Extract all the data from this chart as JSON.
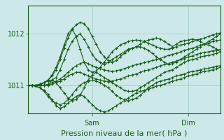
{
  "title": "",
  "xlabel": "Pression niveau de la mer( hPa )",
  "xlabel_fontsize": 8,
  "background_color": "#cce8e8",
  "grid_color": "#a0c8c8",
  "line_color": "#1a5c1a",
  "text_color": "#1a5c1a",
  "yticks": [
    1011,
    1012
  ],
  "ylim": [
    1010.45,
    1012.55
  ],
  "xlim": [
    0,
    48
  ],
  "xtick_positions": [
    16,
    40
  ],
  "xtick_labels": [
    "Sam",
    "Dim"
  ],
  "num_steps": 49,
  "ensemble_lines": [
    [
      1011.0,
      1011.0,
      1011.0,
      1011.0,
      1011.05,
      1011.1,
      1011.2,
      1011.35,
      1011.55,
      1011.78,
      1012.0,
      1012.1,
      1011.95,
      1011.7,
      1011.45,
      1011.3,
      1011.25,
      1011.28,
      1011.35,
      1011.45,
      1011.55,
      1011.65,
      1011.72,
      1011.78,
      1011.82,
      1011.85,
      1011.87,
      1011.88,
      1011.87,
      1011.85,
      1011.82,
      1011.78,
      1011.75,
      1011.72,
      1011.7,
      1011.7,
      1011.72,
      1011.75,
      1011.78,
      1011.8,
      1011.82,
      1011.85,
      1011.88,
      1011.9,
      1011.92,
      1011.95,
      1011.98,
      1012.0,
      1012.02
    ],
    [
      1011.0,
      1011.0,
      1011.0,
      1011.02,
      1011.05,
      1011.1,
      1011.18,
      1011.3,
      1011.5,
      1011.72,
      1011.92,
      1012.08,
      1012.18,
      1012.22,
      1012.2,
      1012.1,
      1011.95,
      1011.8,
      1011.65,
      1011.55,
      1011.48,
      1011.45,
      1011.48,
      1011.55,
      1011.62,
      1011.68,
      1011.72,
      1011.75,
      1011.75,
      1011.72,
      1011.68,
      1011.62,
      1011.55,
      1011.5,
      1011.45,
      1011.4,
      1011.42,
      1011.45,
      1011.5,
      1011.55,
      1011.6,
      1011.65,
      1011.7,
      1011.75,
      1011.8,
      1011.85,
      1011.9,
      1011.95,
      1012.0
    ],
    [
      1011.0,
      1011.0,
      1011.0,
      1011.0,
      1011.0,
      1011.02,
      1011.05,
      1011.08,
      1011.12,
      1011.18,
      1011.25,
      1011.32,
      1011.38,
      1011.42,
      1011.45,
      1011.42,
      1011.38,
      1011.35,
      1011.32,
      1011.3,
      1011.28,
      1011.27,
      1011.28,
      1011.3,
      1011.32,
      1011.35,
      1011.38,
      1011.4,
      1011.42,
      1011.44,
      1011.46,
      1011.48,
      1011.5,
      1011.52,
      1011.55,
      1011.58,
      1011.6,
      1011.62,
      1011.65,
      1011.68,
      1011.7,
      1011.72,
      1011.75,
      1011.78,
      1011.8,
      1011.82,
      1011.85,
      1011.87,
      1011.88
    ],
    [
      1011.0,
      1011.0,
      1011.0,
      1011.0,
      1011.0,
      1011.0,
      1011.02,
      1011.05,
      1011.08,
      1011.12,
      1011.18,
      1011.22,
      1011.25,
      1011.25,
      1011.22,
      1011.18,
      1011.15,
      1011.12,
      1011.1,
      1011.08,
      1011.07,
      1011.08,
      1011.1,
      1011.12,
      1011.15,
      1011.18,
      1011.2,
      1011.22,
      1011.25,
      1011.28,
      1011.3,
      1011.32,
      1011.35,
      1011.38,
      1011.4,
      1011.42,
      1011.45,
      1011.47,
      1011.5,
      1011.52,
      1011.55,
      1011.57,
      1011.6,
      1011.62,
      1011.64,
      1011.65,
      1011.67,
      1011.68,
      1011.7
    ],
    [
      1011.0,
      1011.0,
      1011.0,
      1011.0,
      1011.0,
      1011.0,
      1011.1,
      1011.15,
      1011.3,
      1011.5,
      1011.7,
      1011.85,
      1011.95,
      1012.0,
      1011.9,
      1011.75,
      1011.6,
      1011.5,
      1011.45,
      1011.4,
      1011.45,
      1011.5,
      1011.55,
      1011.6,
      1011.65,
      1011.7,
      1011.72,
      1011.75,
      1011.8,
      1011.85,
      1011.88,
      1011.9,
      1011.92,
      1011.9,
      1011.85,
      1011.8,
      1011.75,
      1011.8,
      1011.85,
      1011.87,
      1011.88,
      1011.9,
      1011.88,
      1011.85,
      1011.8,
      1011.78,
      1011.75,
      1011.7,
      1011.65
    ],
    [
      1011.0,
      1011.0,
      1011.0,
      1011.02,
      1011.05,
      1011.08,
      1011.1,
      1011.05,
      1010.95,
      1010.85,
      1010.75,
      1010.7,
      1010.72,
      1010.8,
      1010.95,
      1011.1,
      1011.2,
      1011.25,
      1011.2,
      1011.15,
      1011.1,
      1011.05,
      1011.0,
      1010.95,
      1010.9,
      1010.88,
      1010.88,
      1010.9,
      1010.95,
      1011.0,
      1011.05,
      1011.1,
      1011.15,
      1011.2,
      1011.25,
      1011.28,
      1011.3,
      1011.35,
      1011.4,
      1011.45,
      1011.48,
      1011.5,
      1011.52,
      1011.55,
      1011.57,
      1011.58,
      1011.6,
      1011.62,
      1011.65
    ],
    [
      1011.0,
      1011.0,
      1010.98,
      1010.95,
      1010.88,
      1010.78,
      1010.7,
      1010.65,
      1010.62,
      1010.65,
      1010.72,
      1010.82,
      1010.92,
      1011.0,
      1011.05,
      1011.08,
      1011.1,
      1011.08,
      1011.05,
      1011.0,
      1010.95,
      1010.88,
      1010.8,
      1010.75,
      1010.72,
      1010.7,
      1010.72,
      1010.75,
      1010.8,
      1010.88,
      1010.95,
      1011.0,
      1011.05,
      1011.08,
      1011.1,
      1011.12,
      1011.15,
      1011.18,
      1011.2,
      1011.22,
      1011.25,
      1011.27,
      1011.28,
      1011.3,
      1011.32,
      1011.33,
      1011.35,
      1011.37,
      1011.38
    ],
    [
      1011.0,
      1011.0,
      1010.98,
      1010.95,
      1010.9,
      1010.82,
      1010.72,
      1010.6,
      1010.55,
      1010.58,
      1010.65,
      1010.72,
      1010.78,
      1010.82,
      1010.78,
      1010.7,
      1010.62,
      1010.55,
      1010.5,
      1010.48,
      1010.5,
      1010.55,
      1010.6,
      1010.65,
      1010.7,
      1010.75,
      1010.8,
      1010.85,
      1010.88,
      1010.9,
      1010.92,
      1010.95,
      1010.98,
      1011.0,
      1011.02,
      1011.05,
      1011.08,
      1011.1,
      1011.12,
      1011.15,
      1011.18,
      1011.2,
      1011.22,
      1011.25,
      1011.27,
      1011.28,
      1011.3,
      1011.32,
      1011.35
    ]
  ]
}
